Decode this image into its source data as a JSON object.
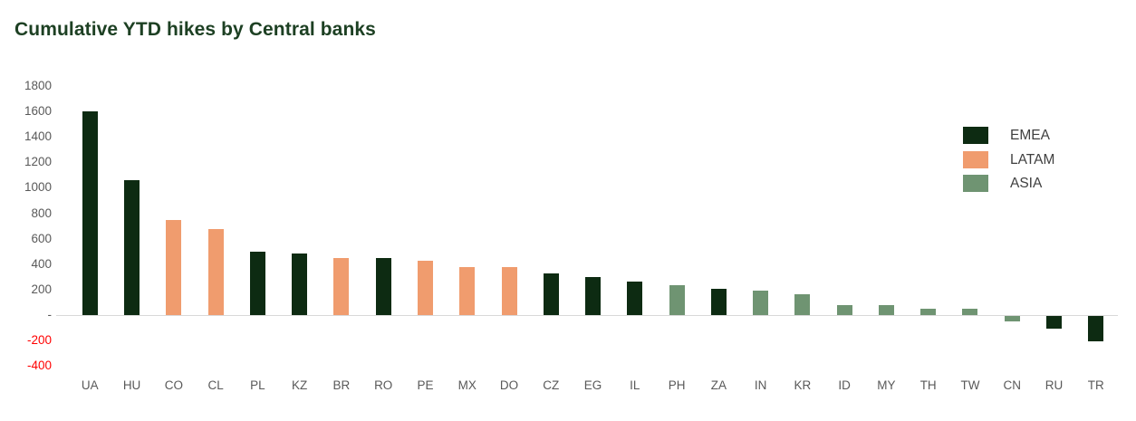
{
  "title": "Cumulative YTD hikes by Central banks",
  "colors": {
    "background": "#ffffff",
    "title_text": "#1d4023",
    "tick_text": "#595959",
    "negative_tick_text": "#ff0000",
    "axis_line": "#d9d9d9",
    "legend_text": "#3f3f3f"
  },
  "chart_data": {
    "type": "bar",
    "title": "Cumulative YTD hikes by Central banks",
    "xlabel": "",
    "ylabel": "",
    "ylim": [
      -400,
      1800
    ],
    "y_tick_step": 200,
    "grid": false,
    "legend_position": "right",
    "y_ticks": [
      {
        "label": "1800",
        "value": 1800
      },
      {
        "label": "1600",
        "value": 1600
      },
      {
        "label": "1400",
        "value": 1400
      },
      {
        "label": "1200",
        "value": 1200
      },
      {
        "label": "1000",
        "value": 1000
      },
      {
        "label": "800",
        "value": 800
      },
      {
        "label": "600",
        "value": 600
      },
      {
        "label": "400",
        "value": 400
      },
      {
        "label": "200",
        "value": 200
      },
      {
        "label": "-",
        "value": 0
      },
      {
        "label": "-200",
        "value": -200
      },
      {
        "label": "-400",
        "value": -400
      }
    ],
    "legend": [
      {
        "label": "EMEA",
        "color": "#0d2b12"
      },
      {
        "label": "LATAM",
        "color": "#f09c6e"
      },
      {
        "label": "ASIA",
        "color": "#6f9472"
      }
    ],
    "categories": [
      "UA",
      "HU",
      "CO",
      "CL",
      "PL",
      "KZ",
      "BR",
      "RO",
      "PE",
      "MX",
      "DO",
      "CZ",
      "EG",
      "IL",
      "PH",
      "ZA",
      "IN",
      "KR",
      "ID",
      "MY",
      "TH",
      "TW",
      "CN",
      "RU",
      "TR"
    ],
    "items": [
      {
        "code": "UA",
        "region": "EMEA",
        "value": 1600
      },
      {
        "code": "HU",
        "region": "EMEA",
        "value": 1060
      },
      {
        "code": "CO",
        "region": "LATAM",
        "value": 750
      },
      {
        "code": "CL",
        "region": "LATAM",
        "value": 675
      },
      {
        "code": "PL",
        "region": "EMEA",
        "value": 500
      },
      {
        "code": "KZ",
        "region": "EMEA",
        "value": 480
      },
      {
        "code": "BR",
        "region": "LATAM",
        "value": 450
      },
      {
        "code": "RO",
        "region": "EMEA",
        "value": 450
      },
      {
        "code": "PE",
        "region": "LATAM",
        "value": 425
      },
      {
        "code": "MX",
        "region": "LATAM",
        "value": 375
      },
      {
        "code": "DO",
        "region": "LATAM",
        "value": 375
      },
      {
        "code": "CZ",
        "region": "EMEA",
        "value": 325
      },
      {
        "code": "EG",
        "region": "EMEA",
        "value": 300
      },
      {
        "code": "IL",
        "region": "EMEA",
        "value": 265
      },
      {
        "code": "PH",
        "region": "ASIA",
        "value": 230
      },
      {
        "code": "ZA",
        "region": "EMEA",
        "value": 205
      },
      {
        "code": "IN",
        "region": "ASIA",
        "value": 190
      },
      {
        "code": "KR",
        "region": "ASIA",
        "value": 160
      },
      {
        "code": "ID",
        "region": "ASIA",
        "value": 75
      },
      {
        "code": "MY",
        "region": "ASIA",
        "value": 75
      },
      {
        "code": "TH",
        "region": "ASIA",
        "value": 50
      },
      {
        "code": "TW",
        "region": "ASIA",
        "value": 50
      },
      {
        "code": "CN",
        "region": "ASIA",
        "value": -45
      },
      {
        "code": "RU",
        "region": "EMEA",
        "value": -100
      },
      {
        "code": "TR",
        "region": "EMEA",
        "value": -200
      }
    ]
  }
}
